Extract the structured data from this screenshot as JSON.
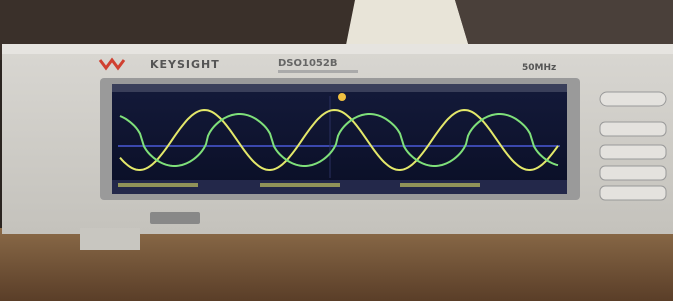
{
  "brand": "KEYSIGHT",
  "model": "DSO1052B",
  "bandwidth": "50MHz"
}
